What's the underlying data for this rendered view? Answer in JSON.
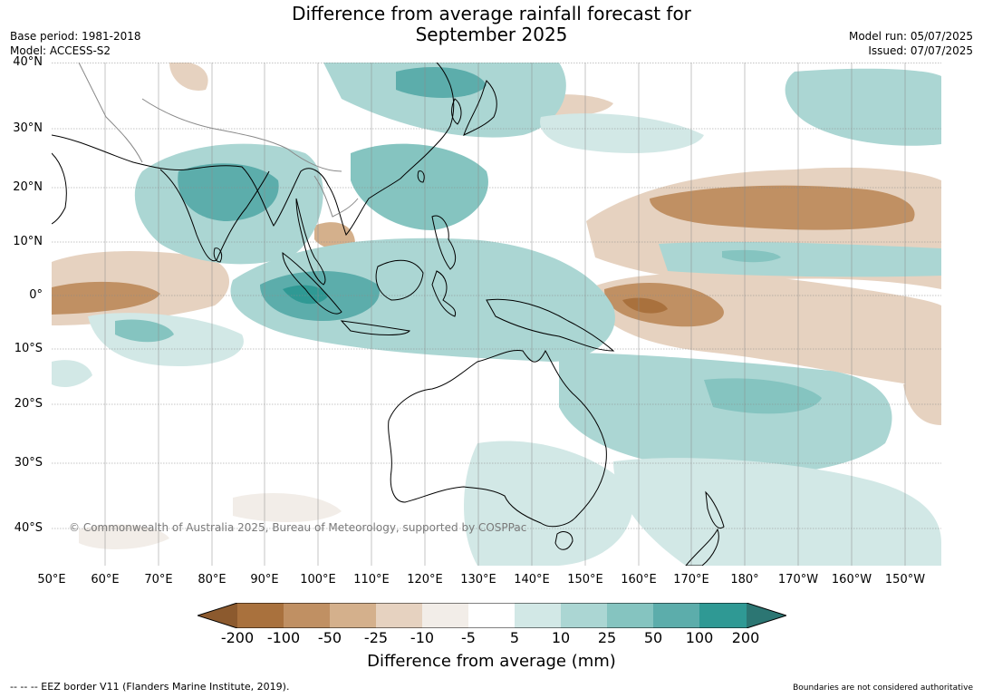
{
  "header": {
    "title_line1": "Difference from average rainfall forecast for",
    "title_line2": "September 2025",
    "base_period": "Base period: 1981-2018",
    "model": "Model: ACCESS-S2",
    "model_run": "Model run: 05/07/2025",
    "issued": "Issued: 07/07/2025"
  },
  "map": {
    "lat_labels": [
      "40°N",
      "30°N",
      "20°N",
      "10°N",
      "0°",
      "10°S",
      "20°S",
      "30°S",
      "40°S"
    ],
    "lon_labels": [
      "50°E",
      "60°E",
      "70°E",
      "80°E",
      "90°E",
      "100°E",
      "110°E",
      "120°E",
      "130°E",
      "140°E",
      "150°E",
      "160°E",
      "170°E",
      "180°",
      "170°W",
      "160°W",
      "150°W"
    ],
    "copyright": "© Commonwealth of Australia 2025, Bureau of Meteorology, supported by COSPPac"
  },
  "legend": {
    "title": "Difference from average (mm)",
    "ticks": [
      "-200",
      "-100",
      "-50",
      "-25",
      "-10",
      "-5",
      "5",
      "10",
      "25",
      "50",
      "100",
      "200"
    ],
    "colors": {
      "dry_extreme": "#8c5a2e",
      "dry_200": "#a9713d",
      "dry_100": "#c09063",
      "dry_50": "#d4b08c",
      "dry_25": "#e6d2c0",
      "dry_10": "#f2ede8",
      "neutral": "#ffffff",
      "wet_5": "#d2e8e6",
      "wet_10": "#abd6d3",
      "wet_25": "#85c4c0",
      "wet_50": "#5cadab",
      "wet_100": "#2f9994",
      "wet_extreme": "#2c7673"
    }
  },
  "footer": {
    "eez_note": "-- -- -- EEZ border V11 (Flanders Marine Institute, 2019).",
    "disclaimer": "Boundaries are not considered authoritative"
  }
}
